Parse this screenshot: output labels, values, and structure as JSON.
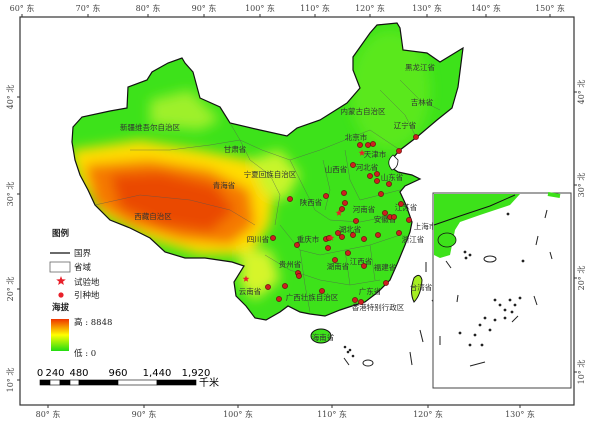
{
  "axes": {
    "top_ticks": [
      "60° 东",
      "70° 东",
      "80° 东",
      "90° 东",
      "100° 东",
      "110° 东",
      "120° 东",
      "130° 东",
      "140° 东",
      "150° 东"
    ],
    "bottom_ticks": [
      "80° 东",
      "90° 东",
      "100° 东",
      "110° 东",
      "120° 东",
      "130° 东"
    ],
    "left_ticks": [
      "40° 北",
      "30° 北",
      "20° 北",
      "10° 北"
    ],
    "right_ticks": [
      "40° 北",
      "30° 北",
      "20° 北",
      "10° 北"
    ]
  },
  "provinces": [
    "新疆维吾尔自治区",
    "西藏自治区",
    "青海省",
    "甘肃省",
    "宁夏回族自治区",
    "内蒙古自治区",
    "黑龙江省",
    "吉林省",
    "辽宁省",
    "北京市",
    "天津市",
    "河北省",
    "山西省",
    "山东省",
    "陕西省",
    "河南省",
    "江苏省",
    "安徽省",
    "上海市",
    "湖北省",
    "四川省",
    "重庆市",
    "浙江省",
    "贵州省",
    "湖南省",
    "江西省",
    "福建省",
    "云南省",
    "广西壮族自治区",
    "广东省",
    "香港特别行政区",
    "台湾省",
    "海南省"
  ],
  "legend": {
    "title": "图例",
    "national_border": "国界",
    "province": "省域",
    "trial_site": "试验地",
    "introduction_site": "引种地",
    "elevation_title": "海拔",
    "high": "高 : 8848",
    "low": "低 : 0"
  },
  "scale_bar": {
    "labels": [
      "0",
      "240",
      "480",
      "960",
      "1,440",
      "1,920"
    ],
    "unit": "千米"
  },
  "colors": {
    "low_elev": "#22dd11",
    "mid_elev": "#ffff00",
    "high_elev": "#ee3300",
    "trial_site": "#e8202a",
    "introduction_site": "#cc1f1f"
  },
  "icons": {
    "trial_site": "star-icon",
    "introduction_site": "dot-icon"
  }
}
